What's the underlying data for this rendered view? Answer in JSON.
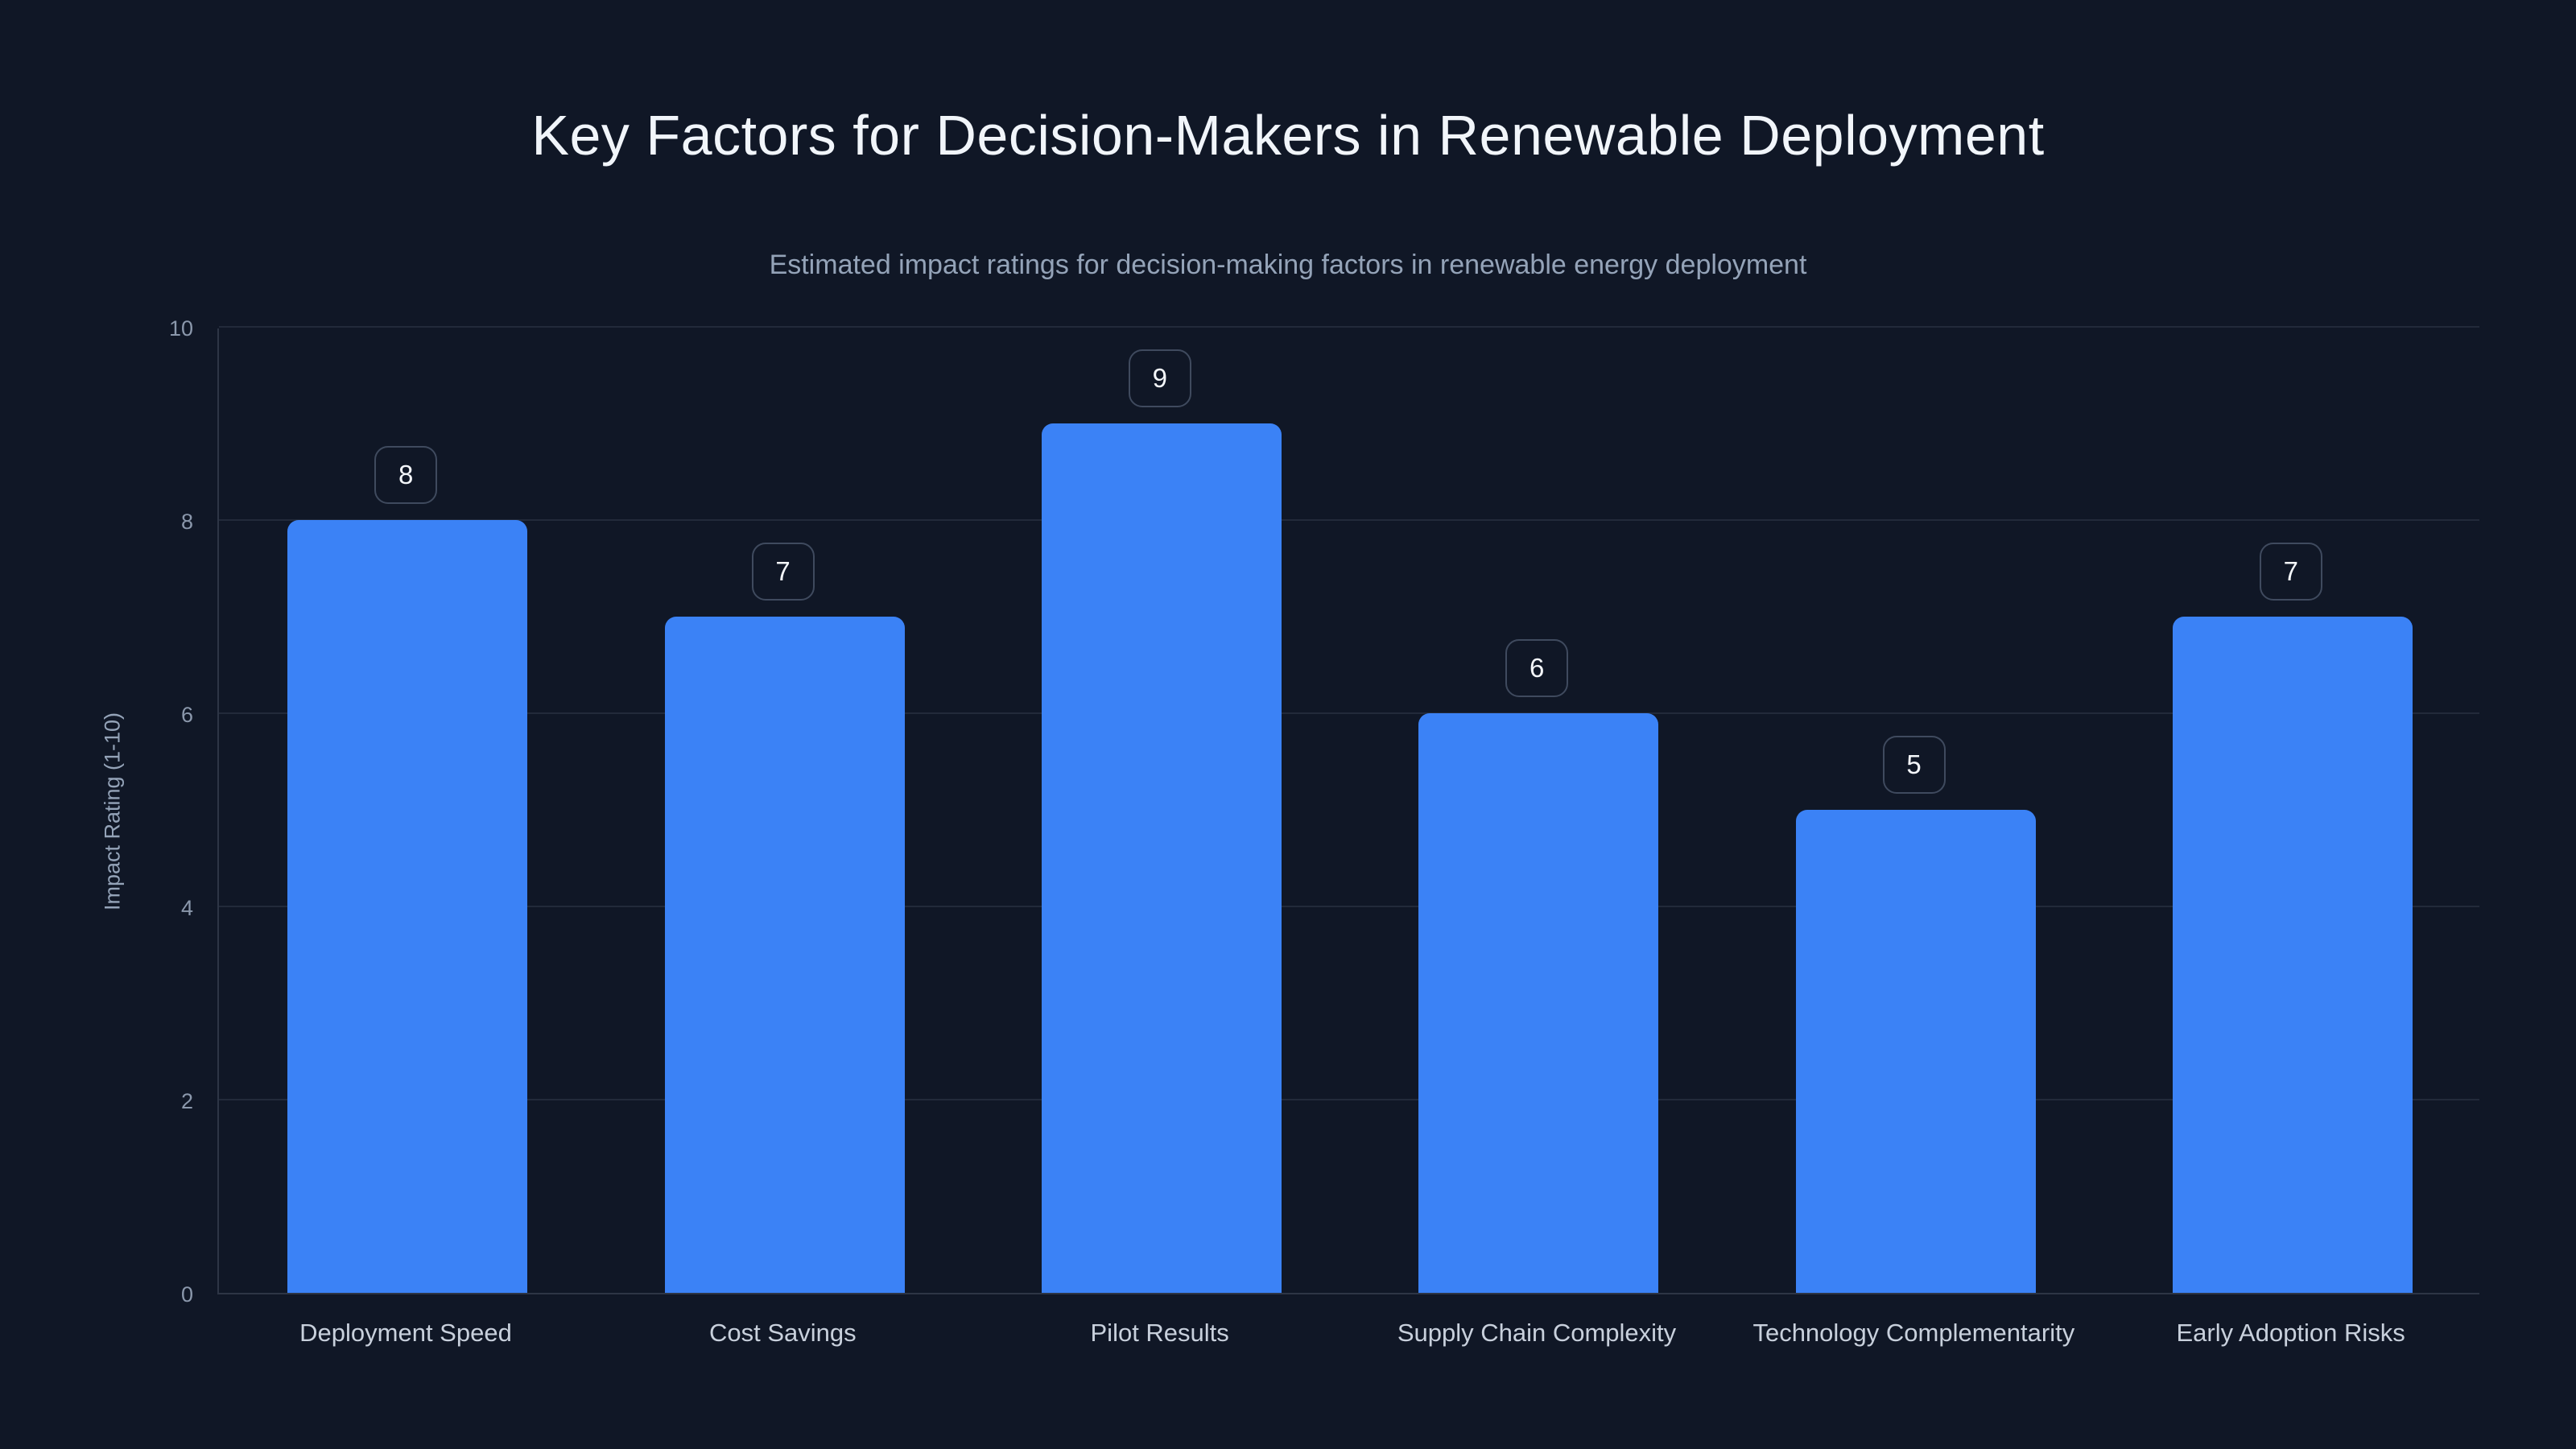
{
  "header": {
    "title": "Key Factors for Decision-Makers in Renewable Deployment",
    "subtitle": "Estimated impact ratings for decision-making factors in renewable energy deployment"
  },
  "chart_data": {
    "type": "bar",
    "title": "Key Factors for Decision-Makers in Renewable Deployment",
    "subtitle": "Estimated impact ratings for decision-making factors in renewable energy deployment",
    "categories": [
      "Deployment Speed",
      "Cost Savings",
      "Pilot Results",
      "Supply Chain Complexity",
      "Technology Complementarity",
      "Early Adoption Risks"
    ],
    "values": [
      8,
      7,
      9,
      6,
      5,
      7
    ],
    "value_labels": [
      "8",
      "7",
      "9",
      "6",
      "5",
      "7"
    ],
    "xlabel": "",
    "ylabel": "Impact Rating (1-10)",
    "ylim": [
      0,
      10
    ],
    "yticks": [
      0,
      2,
      4,
      6,
      8,
      10
    ],
    "grid": true,
    "legend": "none",
    "colors": {
      "background": "#101726",
      "bar": "#3b82f6",
      "gridline": "rgba(148,163,184,0.14)",
      "axis_line": "rgba(148,163,184,0.22)",
      "title_text": "#f1f5fa",
      "subtitle_text": "#94a3b8",
      "tick_text": "#8b98ac",
      "category_text": "#c8d0dc",
      "badge_border": "#3f4a5e",
      "badge_text": "#f4f7fb"
    }
  }
}
